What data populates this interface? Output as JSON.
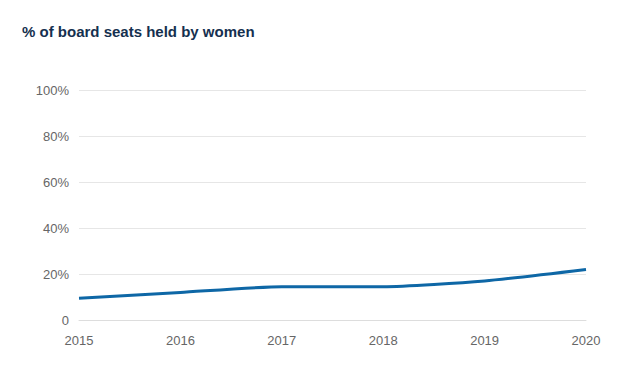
{
  "chart_data": {
    "type": "line",
    "title": "% of board seats held by women",
    "categories": [
      "2015",
      "2016",
      "2017",
      "2018",
      "2019",
      "2020"
    ],
    "values": [
      9.5,
      12,
      14.5,
      14.5,
      17,
      22
    ],
    "color": "#0e67a6",
    "marker": "none",
    "line_style": "solid",
    "ylim": [
      0,
      100
    ],
    "yticks": [
      0,
      {
        "value": 20,
        "label": "20%"
      },
      {
        "value": 40,
        "label": "40%"
      },
      {
        "value": 60,
        "label": "60%"
      },
      {
        "value": 80,
        "label": "80%"
      },
      {
        "value": 100,
        "label": "100%"
      }
    ],
    "grid": true
  }
}
